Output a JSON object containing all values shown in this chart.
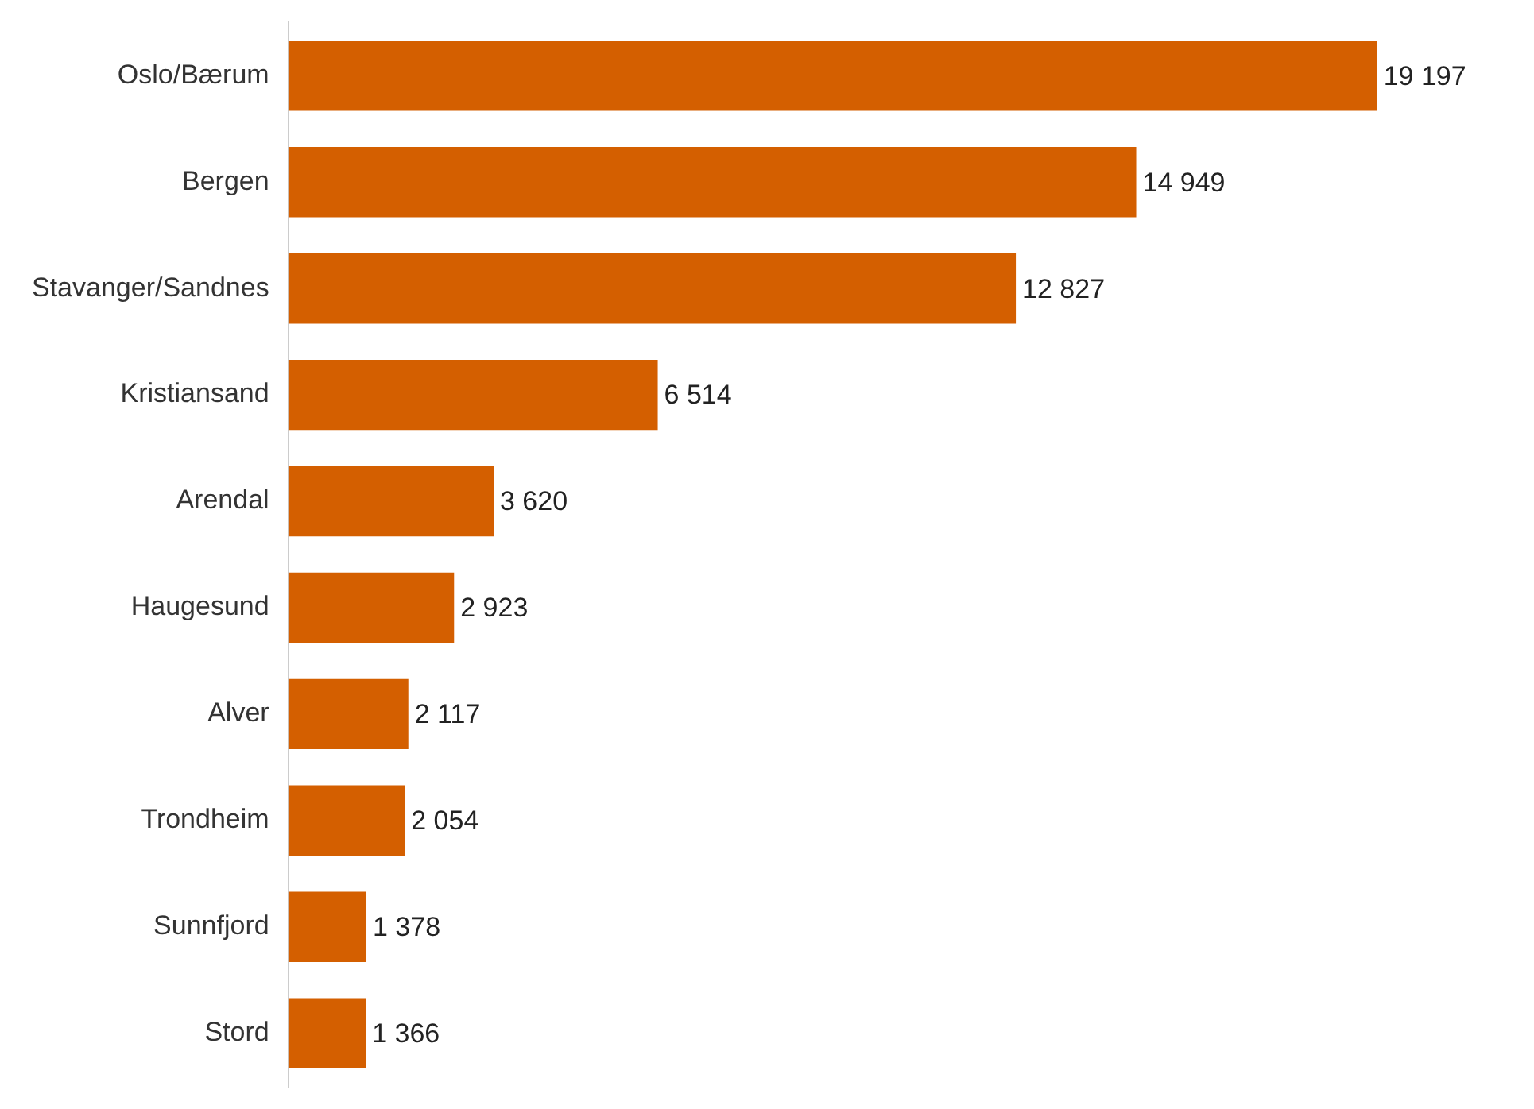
{
  "chart_data": {
    "type": "bar",
    "orientation": "horizontal",
    "categories": [
      "Oslo/Bærum",
      "Bergen",
      "Stavanger/Sandnes",
      "Kristiansand",
      "Arendal",
      "Haugesund",
      "Alver",
      "Trondheim",
      "Sunnfjord",
      "Stord"
    ],
    "values": [
      19197,
      14949,
      12827,
      6514,
      3620,
      2923,
      2117,
      2054,
      1378,
      1366
    ],
    "value_labels": [
      "19 197",
      "14 949",
      "12 827",
      "6 514",
      "3 620",
      "2 923",
      "2 117",
      "2 054",
      "1 378",
      "1 366"
    ],
    "color": "#d45f00",
    "tick_labels": "y",
    "grid": false,
    "legend": false
  }
}
